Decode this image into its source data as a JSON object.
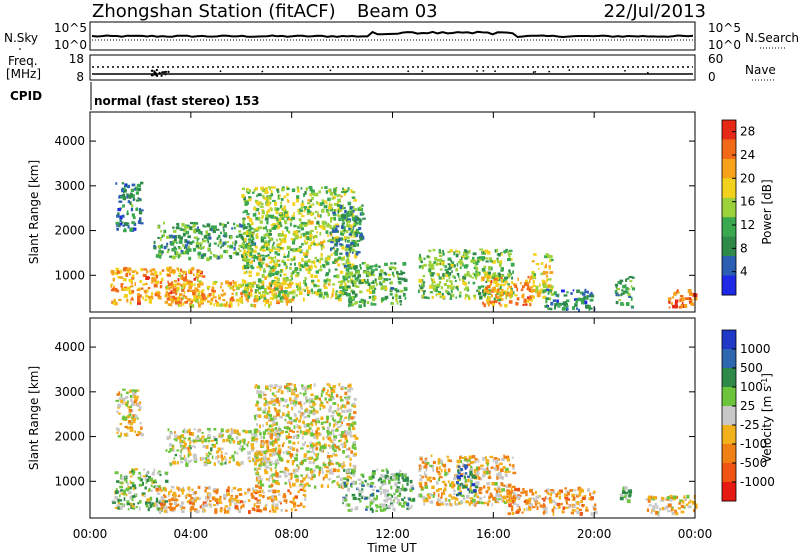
{
  "header": {
    "station": "Zhongshan Station (fitACF)",
    "beam": "Beam 03",
    "date": "22/Jul/2013"
  },
  "strip_labels": {
    "nsky": "N.Sky",
    "nsky_top": "10^5",
    "nsky_bottom": "10^0",
    "nsearch": "N.Search",
    "nsearch_top": "10^5",
    "nsearch_bottom": "10^0",
    "freq_line1": "Freq.",
    "freq_line2": "[MHz]",
    "freq_top": "18",
    "freq_bottom": "8",
    "nave": "Nave",
    "nave_top": "60",
    "nave_bottom": "0",
    "cpid": "CPID",
    "mode": "normal (fast stereo) 153"
  },
  "colors": {
    "power_scale": [
      "#1f28e6",
      "#2a5fb4",
      "#2f8a4a",
      "#39a84e",
      "#9bd13a",
      "#f2d21c",
      "#f6a21a",
      "#f26a17",
      "#e62917"
    ],
    "velocity_scale": [
      "#2038c8",
      "#2e66b0",
      "#2f8a4a",
      "#6cc43c",
      "#c8c8c8",
      "#f2b01a",
      "#f07f14",
      "#ef5412",
      "#e61a12"
    ]
  },
  "chart_data": [
    {
      "type": "heatmap",
      "title": "",
      "xlabel": "",
      "ylabel": "Slant Range [km]",
      "x_ticks": [
        "00:00",
        "04:00",
        "08:00",
        "12:00",
        "16:00",
        "20:00",
        "00:00"
      ],
      "y_ticks": [
        "1000",
        "2000",
        "3000",
        "4000"
      ],
      "xlim_hours": [
        0,
        24
      ],
      "ylim_km": [
        180,
        4650
      ],
      "colorbar": {
        "label": "Power [dB]",
        "ticks": [
          "4",
          "8",
          "12",
          "16",
          "20",
          "24",
          "28"
        ],
        "range": [
          0,
          30
        ]
      },
      "echo_regions": [
        {
          "x_hours": [
            0.8,
            4.5
          ],
          "y_km": [
            400,
            1200
          ],
          "value": 22
        },
        {
          "x_hours": [
            1.0,
            2.0
          ],
          "y_km": [
            2000,
            3100
          ],
          "value": 8
        },
        {
          "x_hours": [
            3.0,
            8.0
          ],
          "y_km": [
            350,
            900
          ],
          "value": 20
        },
        {
          "x_hours": [
            2.5,
            6.5
          ],
          "y_km": [
            1400,
            2200
          ],
          "value": 11
        },
        {
          "x_hours": [
            6.0,
            10.5
          ],
          "y_km": [
            500,
            3000
          ],
          "value": 15
        },
        {
          "x_hours": [
            9.5,
            10.8
          ],
          "y_km": [
            1500,
            2600
          ],
          "value": 9
        },
        {
          "x_hours": [
            10.0,
            12.5
          ],
          "y_km": [
            350,
            1300
          ],
          "value": 12
        },
        {
          "x_hours": [
            13.0,
            16.8
          ],
          "y_km": [
            500,
            1600
          ],
          "value": 13
        },
        {
          "x_hours": [
            15.5,
            17.5
          ],
          "y_km": [
            350,
            1000
          ],
          "value": 22
        },
        {
          "x_hours": [
            17.5,
            18.3
          ],
          "y_km": [
            500,
            1500
          ],
          "value": 18
        },
        {
          "x_hours": [
            18.0,
            20.0
          ],
          "y_km": [
            250,
            700
          ],
          "value": 8
        },
        {
          "x_hours": [
            20.8,
            21.5
          ],
          "y_km": [
            300,
            1000
          ],
          "value": 10
        },
        {
          "x_hours": [
            22.8,
            24.0
          ],
          "y_km": [
            280,
            700
          ],
          "value": 26
        }
      ]
    },
    {
      "type": "heatmap",
      "title": "",
      "xlabel": "Time UT",
      "ylabel": "Slant Range [km]",
      "x_ticks": [
        "00:00",
        "04:00",
        "08:00",
        "12:00",
        "16:00",
        "20:00",
        "00:00"
      ],
      "y_ticks": [
        "1000",
        "2000",
        "3000",
        "4000"
      ],
      "xlim_hours": [
        0,
        24
      ],
      "ylim_km": [
        180,
        4650
      ],
      "colorbar": {
        "label": "Velocity [m s",
        "label_superscript": "-1",
        "label_suffix": "]",
        "ticks": [
          "1000",
          "500",
          "100",
          "25",
          "-25",
          "-100",
          "-500",
          "-1000"
        ],
        "range": [
          -1200,
          1200
        ]
      },
      "echo_regions": [
        {
          "x_hours": [
            0.8,
            3.0
          ],
          "y_km": [
            400,
            1300
          ],
          "value": 200
        },
        {
          "x_hours": [
            1.0,
            2.0
          ],
          "y_km": [
            2000,
            3100
          ],
          "value": -80
        },
        {
          "x_hours": [
            2.5,
            8.5
          ],
          "y_km": [
            350,
            900
          ],
          "value": -300
        },
        {
          "x_hours": [
            3.0,
            7.5
          ],
          "y_km": [
            1400,
            2200
          ],
          "value": 0
        },
        {
          "x_hours": [
            6.5,
            10.5
          ],
          "y_km": [
            900,
            3200
          ],
          "value": -60
        },
        {
          "x_hours": [
            10.0,
            12.8
          ],
          "y_km": [
            350,
            1300
          ],
          "value": 300
        },
        {
          "x_hours": [
            13.0,
            16.8
          ],
          "y_km": [
            500,
            1600
          ],
          "value": -200
        },
        {
          "x_hours": [
            14.5,
            15.3
          ],
          "y_km": [
            700,
            1400
          ],
          "value": 700
        },
        {
          "x_hours": [
            16.5,
            20.0
          ],
          "y_km": [
            300,
            900
          ],
          "value": -350
        },
        {
          "x_hours": [
            21.0,
            21.4
          ],
          "y_km": [
            600,
            900
          ],
          "value": 300
        },
        {
          "x_hours": [
            22.0,
            24.0
          ],
          "y_km": [
            280,
            700
          ],
          "value": -200
        }
      ]
    }
  ]
}
